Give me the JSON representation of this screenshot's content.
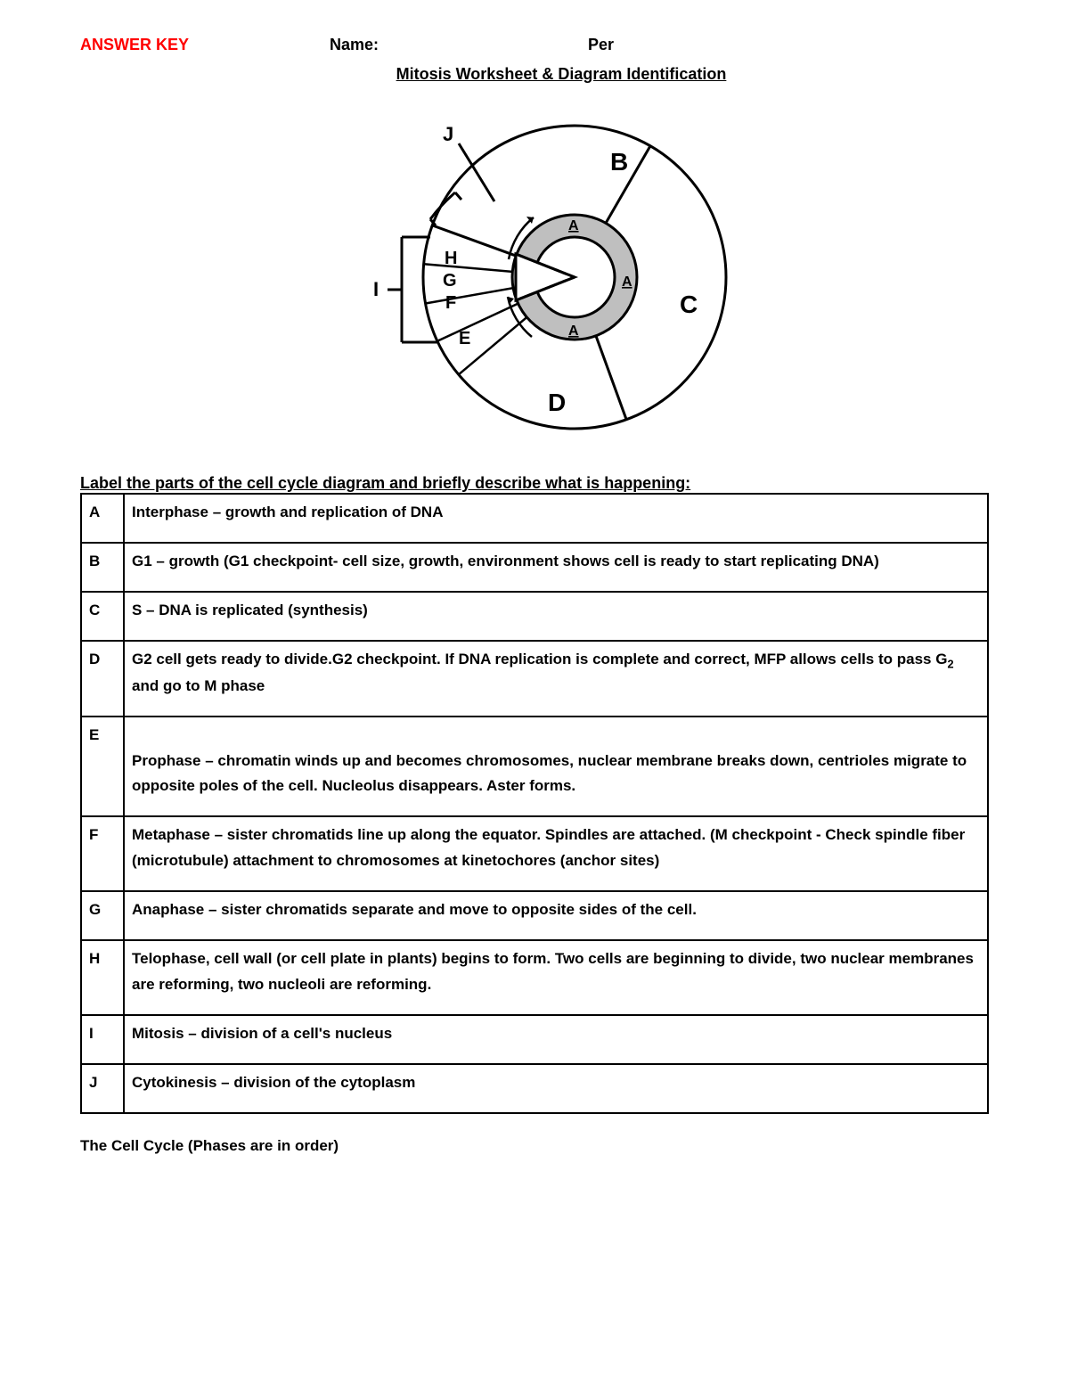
{
  "header": {
    "answer_key": "ANSWER KEY",
    "name_label": "Name:",
    "per_label": "Per"
  },
  "title": "Mitosis Worksheet & Diagram Identification",
  "diagram": {
    "outer_labels": {
      "B": "B",
      "C": "C",
      "D": "D"
    },
    "wedge_labels": {
      "E": "E",
      "F": "F",
      "G": "G",
      "H": "H"
    },
    "callouts": {
      "I": "I",
      "J": "J"
    },
    "inner_label": "A",
    "colors": {
      "stroke": "#000000",
      "fill_bg": "#ffffff",
      "fill_ring": "#bfbfbf"
    },
    "stroke_width": 3
  },
  "instruction": "Label the parts of the cell cycle diagram and briefly describe what is happening:",
  "rows": [
    {
      "letter": "A",
      "text": "Interphase – growth and replication of DNA"
    },
    {
      "letter": "B",
      "text": "G1 – growth (G1 checkpoint- cell size, growth, environment shows cell is ready to start replicating DNA)"
    },
    {
      "letter": "C",
      "text": "S – DNA is replicated (synthesis)"
    },
    {
      "letter": "D",
      "text": "G2 cell gets ready to divide.G2 checkpoint. If DNA replication is complete and correct, MFP  allows cells to pass G₂ and go to M phase"
    },
    {
      "letter": "E",
      "text": "Prophase – chromatin winds up and becomes chromosomes, nuclear membrane breaks down, centrioles migrate to opposite poles of the cell. Nucleolus disappears. Aster forms."
    },
    {
      "letter": "F",
      "text": "Metaphase – sister chromatids line up along the equator. Spindles are attached. (M checkpoint - Check spindle fiber (microtubule) attachment to chromosomes at kinetochores (anchor sites)"
    },
    {
      "letter": "G",
      "text": "Anaphase – sister chromatids separate and move to opposite sides of the cell."
    },
    {
      "letter": "H",
      "text": "Telophase, cell wall (or cell plate in plants) begins to form. Two cells are beginning to divide, two nuclear membranes are reforming, two nucleoli are reforming."
    },
    {
      "letter": "I",
      "text": "Mitosis – division of a cell's nucleus"
    },
    {
      "letter": "J",
      "text": "Cytokinesis – division of the cytoplasm"
    }
  ],
  "row_pad_top": {
    "E": true
  },
  "footer": "The Cell Cycle (Phases are in order)"
}
